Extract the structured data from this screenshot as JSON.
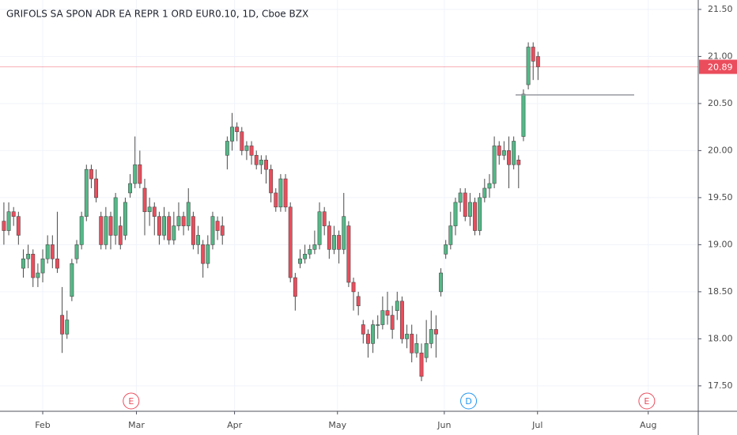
{
  "chart_data": {
    "type": "candlestick",
    "title": "GRIFOLS SA SPON ADR EA REPR 1 ORD EUR0.10, 1D, Cboe BZX",
    "up_color": "#53b987",
    "down_color": "#eb4d5c",
    "open": [
      19.25,
      19.15,
      19.35,
      19.3,
      18.75,
      18.85,
      18.9,
      18.65,
      18.7,
      18.85,
      19.0,
      18.85,
      18.25,
      18.05,
      18.45,
      18.85,
      19.0,
      19.3,
      19.8,
      19.7,
      19.3,
      19.0,
      19.3,
      19.1,
      19.2,
      19.1,
      19.55,
      19.65,
      19.85,
      19.6,
      19.35,
      19.4,
      19.3,
      19.1,
      19.3,
      19.05,
      19.2,
      19.3,
      19.2,
      19.3,
      19.0,
      19.0,
      18.8,
      19.0,
      19.25,
      19.2,
      19.95,
      20.1,
      20.25,
      20.2,
      20.0,
      20.05,
      19.95,
      19.85,
      19.9,
      19.8,
      19.55,
      19.4,
      19.7,
      19.4,
      18.65,
      18.8,
      18.85,
      18.9,
      18.95,
      19.0,
      19.35,
      19.2,
      18.95,
      19.1,
      18.95,
      19.2,
      18.6,
      18.45,
      18.15,
      18.05,
      17.95,
      18.15,
      18.15,
      18.3,
      18.25,
      18.3,
      18.4,
      18.0,
      18.05,
      17.85,
      17.85,
      17.8,
      17.95,
      18.1,
      18.5,
      18.9,
      19.0,
      19.2,
      19.45,
      19.55,
      19.3,
      19.45,
      19.15,
      19.5,
      19.6,
      19.65,
      20.05,
      19.95,
      20.0,
      19.85,
      19.9,
      20.15,
      20.7,
      21.1,
      21.0
    ],
    "high": [
      19.45,
      19.45,
      19.4,
      19.35,
      18.95,
      19.0,
      18.95,
      18.8,
      18.95,
      19.1,
      19.1,
      19.35,
      18.55,
      18.3,
      18.85,
      19.05,
      19.35,
      19.85,
      19.85,
      19.8,
      19.35,
      19.4,
      19.35,
      19.55,
      19.3,
      19.5,
      19.75,
      20.15,
      20.0,
      19.7,
      19.5,
      19.45,
      19.35,
      19.4,
      19.35,
      19.35,
      19.45,
      19.35,
      19.6,
      19.35,
      19.2,
      19.05,
      19.1,
      19.35,
      19.3,
      19.3,
      20.15,
      20.4,
      20.3,
      20.25,
      20.1,
      20.1,
      20.0,
      19.95,
      19.95,
      19.85,
      19.6,
      19.75,
      19.75,
      19.45,
      18.7,
      18.95,
      19.0,
      19.0,
      19.15,
      19.45,
      19.4,
      19.25,
      19.2,
      19.15,
      19.55,
      19.25,
      18.65,
      18.5,
      18.2,
      18.1,
      18.2,
      18.25,
      18.45,
      18.5,
      18.35,
      18.5,
      18.45,
      18.15,
      18.15,
      18.05,
      17.95,
      18.2,
      18.3,
      18.25,
      18.75,
      19.05,
      19.35,
      19.5,
      19.6,
      19.6,
      19.55,
      19.5,
      19.55,
      19.7,
      19.75,
      20.15,
      20.1,
      20.1,
      20.15,
      20.15,
      19.95,
      20.65,
      21.15,
      21.15,
      21.05
    ],
    "low": [
      19.0,
      19.1,
      19.2,
      19.0,
      18.65,
      18.75,
      18.55,
      18.55,
      18.6,
      18.8,
      18.75,
      18.7,
      17.85,
      18.0,
      18.4,
      18.8,
      18.95,
      19.25,
      19.6,
      19.45,
      18.95,
      18.95,
      18.95,
      19.0,
      18.95,
      19.05,
      19.5,
      19.6,
      19.6,
      19.1,
      19.2,
      19.1,
      19.0,
      19.05,
      19.0,
      19.0,
      19.15,
      19.1,
      19.15,
      18.95,
      18.9,
      18.65,
      18.75,
      18.95,
      19.05,
      19.0,
      19.8,
      20.0,
      20.1,
      19.95,
      19.9,
      19.85,
      19.8,
      19.75,
      19.65,
      19.45,
      19.35,
      19.35,
      19.35,
      18.6,
      18.3,
      18.75,
      18.8,
      18.85,
      18.9,
      18.95,
      19.1,
      18.85,
      18.9,
      18.8,
      18.9,
      18.55,
      18.3,
      18.25,
      17.95,
      17.8,
      17.85,
      18.0,
      18.1,
      18.15,
      18.0,
      18.2,
      17.95,
      17.9,
      17.75,
      17.8,
      17.55,
      17.75,
      17.9,
      17.8,
      18.45,
      18.85,
      18.95,
      19.1,
      19.35,
      19.25,
      19.2,
      19.1,
      19.1,
      19.45,
      19.5,
      19.6,
      19.85,
      19.9,
      19.6,
      19.8,
      19.6,
      20.1,
      20.65,
      20.75,
      20.75
    ],
    "close": [
      19.15,
      19.35,
      19.3,
      19.1,
      18.85,
      18.9,
      18.65,
      18.7,
      18.85,
      19.0,
      18.85,
      18.75,
      18.05,
      18.2,
      18.8,
      19.0,
      19.3,
      19.8,
      19.7,
      19.5,
      19.0,
      19.3,
      19.1,
      19.5,
      19.0,
      19.45,
      19.65,
      19.85,
      19.65,
      19.35,
      19.4,
      19.3,
      19.1,
      19.3,
      19.05,
      19.2,
      19.3,
      19.2,
      19.45,
      19.0,
      19.1,
      18.8,
      19.0,
      19.3,
      19.15,
      19.1,
      20.1,
      20.25,
      20.2,
      20.0,
      20.05,
      19.95,
      19.85,
      19.9,
      19.8,
      19.55,
      19.4,
      19.7,
      19.4,
      18.65,
      18.45,
      18.85,
      18.9,
      18.95,
      19.0,
      19.35,
      19.2,
      18.95,
      19.1,
      18.95,
      19.3,
      18.6,
      18.5,
      18.35,
      18.05,
      17.95,
      18.15,
      18.15,
      18.3,
      18.25,
      18.1,
      18.4,
      18.0,
      18.05,
      17.85,
      17.95,
      17.6,
      17.95,
      18.1,
      18.05,
      18.7,
      19.0,
      19.2,
      19.45,
      19.55,
      19.3,
      19.45,
      19.15,
      19.5,
      19.6,
      19.65,
      20.05,
      19.95,
      20.0,
      19.85,
      20.1,
      19.85,
      20.6,
      21.1,
      20.95,
      20.89
    ],
    "last_price": {
      "value": 20.89,
      "label": "20.89",
      "color": "#eb4d5c"
    },
    "xlim": [
      -0.8,
      143
    ],
    "xticks": [
      {
        "value": 8,
        "label": "Feb"
      },
      {
        "value": 27.3,
        "label": "Mar"
      },
      {
        "value": 47.5,
        "label": "Apr"
      },
      {
        "value": 68.7,
        "label": "May"
      },
      {
        "value": 90.7,
        "label": "Jun"
      },
      {
        "value": 109.9,
        "label": "Jul"
      },
      {
        "value": 132.7,
        "label": "Aug"
      }
    ],
    "ylim": [
      17.23,
      21.6
    ],
    "yticks": [
      {
        "value": 17.5,
        "label": "17.50"
      },
      {
        "value": 18,
        "label": "18.00"
      },
      {
        "value": 18.5,
        "label": "18.50"
      },
      {
        "value": 19,
        "label": "19.00"
      },
      {
        "value": 19.5,
        "label": "19.50"
      },
      {
        "value": 20,
        "label": "20.00"
      },
      {
        "value": 20.5,
        "label": "20.50"
      },
      {
        "value": 21,
        "label": "21.00"
      },
      {
        "value": 21.5,
        "label": "21.50"
      }
    ],
    "grid": true,
    "events": [
      {
        "label": "E",
        "x": 26.2,
        "color": "#eb4d5c"
      },
      {
        "label": "D",
        "x": 95.7,
        "color": "#2196f3"
      },
      {
        "label": "E",
        "x": 132.4,
        "color": "#eb4d5c"
      }
    ]
  }
}
